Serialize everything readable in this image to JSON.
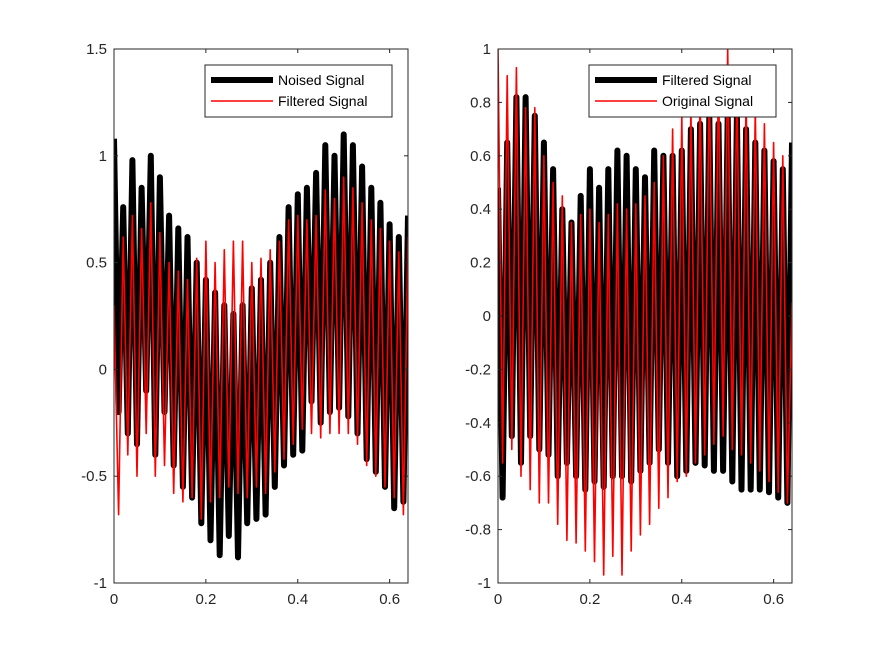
{
  "chart_data": [
    {
      "type": "line",
      "title": "",
      "xlabel": "",
      "ylabel": "",
      "xlim": [
        0,
        0.64
      ],
      "ylim": [
        -1,
        1.5
      ],
      "xticks": [
        0,
        0.2,
        0.4,
        0.6
      ],
      "xtick_labels": [
        "0",
        "0.2",
        "0.4",
        "0.6"
      ],
      "yticks": [
        -1,
        -0.5,
        0,
        0.5,
        1,
        1.5
      ],
      "ytick_labels": [
        "-1",
        "-0.5",
        "0",
        "0.5",
        "1",
        "1.5"
      ],
      "legend_position": "top-right",
      "grid": false,
      "series": [
        {
          "name": "Noised Signal",
          "color": "#000000",
          "style": "thick",
          "x": [
            0,
            0.01,
            0.02,
            0.03,
            0.04,
            0.05,
            0.06,
            0.07,
            0.08,
            0.09,
            0.1,
            0.11,
            0.12,
            0.13,
            0.14,
            0.15,
            0.16,
            0.17,
            0.18,
            0.19,
            0.2,
            0.21,
            0.22,
            0.23,
            0.24,
            0.25,
            0.26,
            0.27,
            0.28,
            0.29,
            0.3,
            0.31,
            0.32,
            0.33,
            0.34,
            0.35,
            0.36,
            0.37,
            0.38,
            0.39,
            0.4,
            0.41,
            0.42,
            0.43,
            0.44,
            0.45,
            0.46,
            0.47,
            0.48,
            0.49,
            0.5,
            0.51,
            0.52,
            0.53,
            0.54,
            0.55,
            0.56,
            0.57,
            0.58,
            0.59,
            0.6,
            0.61,
            0.62,
            0.63,
            0.64
          ],
          "y": [
            1.08,
            -0.2,
            0.76,
            -0.3,
            0.98,
            -0.35,
            0.85,
            -0.1,
            1.0,
            -0.4,
            0.9,
            -0.2,
            0.72,
            -0.45,
            0.66,
            -0.55,
            0.62,
            -0.6,
            0.5,
            -0.72,
            0.42,
            -0.8,
            0.36,
            -0.87,
            0.3,
            -0.78,
            0.26,
            -0.88,
            0.3,
            -0.72,
            0.38,
            -0.7,
            0.42,
            -0.68,
            0.5,
            -0.55,
            0.62,
            -0.45,
            0.76,
            -0.4,
            0.82,
            -0.38,
            0.85,
            -0.15,
            0.92,
            -0.25,
            1.05,
            -0.2,
            1.0,
            -0.18,
            1.1,
            -0.22,
            1.05,
            -0.3,
            0.95,
            -0.42,
            0.85,
            -0.48,
            0.78,
            -0.55,
            0.68,
            -0.65,
            0.62,
            -0.62,
            0.72
          ]
        },
        {
          "name": "Filtered Signal",
          "color": "#ff0000",
          "style": "thin",
          "x": [
            0,
            0.01,
            0.02,
            0.03,
            0.04,
            0.05,
            0.06,
            0.07,
            0.08,
            0.09,
            0.1,
            0.11,
            0.12,
            0.13,
            0.14,
            0.15,
            0.16,
            0.17,
            0.18,
            0.19,
            0.2,
            0.21,
            0.22,
            0.23,
            0.24,
            0.25,
            0.26,
            0.27,
            0.28,
            0.29,
            0.3,
            0.31,
            0.32,
            0.33,
            0.34,
            0.35,
            0.36,
            0.37,
            0.38,
            0.39,
            0.4,
            0.41,
            0.42,
            0.43,
            0.44,
            0.45,
            0.46,
            0.47,
            0.48,
            0.49,
            0.5,
            0.51,
            0.52,
            0.53,
            0.54,
            0.55,
            0.56,
            0.57,
            0.58,
            0.59,
            0.6,
            0.61,
            0.62,
            0.63,
            0.64
          ],
          "y": [
            0.3,
            -0.68,
            0.62,
            -0.4,
            0.72,
            -0.5,
            0.66,
            -0.3,
            0.78,
            -0.5,
            0.64,
            -0.45,
            0.5,
            -0.58,
            0.46,
            -0.62,
            0.42,
            -0.6,
            0.52,
            -0.7,
            0.6,
            -0.62,
            0.5,
            -0.6,
            0.56,
            -0.55,
            0.6,
            -0.58,
            0.6,
            -0.6,
            0.5,
            -0.55,
            0.52,
            -0.58,
            0.56,
            -0.48,
            0.6,
            -0.42,
            0.7,
            -0.35,
            0.72,
            -0.28,
            0.7,
            -0.3,
            0.72,
            -0.32,
            0.84,
            -0.3,
            0.8,
            -0.3,
            0.9,
            -0.3,
            0.85,
            -0.35,
            0.78,
            -0.45,
            0.7,
            -0.5,
            0.66,
            -0.55,
            0.6,
            -0.6,
            0.55,
            -0.68,
            0.62
          ]
        }
      ]
    },
    {
      "type": "line",
      "title": "",
      "xlabel": "",
      "ylabel": "",
      "xlim": [
        0,
        0.64
      ],
      "ylim": [
        -1,
        1
      ],
      "xticks": [
        0,
        0.2,
        0.4,
        0.6
      ],
      "xtick_labels": [
        "0",
        "0.2",
        "0.4",
        "0.6"
      ],
      "yticks": [
        -1,
        -0.8,
        -0.6,
        -0.4,
        -0.2,
        0,
        0.2,
        0.4,
        0.6,
        0.8,
        1
      ],
      "ytick_labels": [
        "-1",
        "-0.8",
        "-0.6",
        "-0.4",
        "-0.2",
        "0",
        "0.2",
        "0.4",
        "0.6",
        "0.8",
        "1"
      ],
      "legend_position": "top-right",
      "grid": false,
      "series": [
        {
          "name": "Filtered Signal",
          "color": "#000000",
          "style": "thick",
          "x": [
            0,
            0.01,
            0.02,
            0.03,
            0.04,
            0.05,
            0.06,
            0.07,
            0.08,
            0.09,
            0.1,
            0.11,
            0.12,
            0.13,
            0.14,
            0.15,
            0.16,
            0.17,
            0.18,
            0.19,
            0.2,
            0.21,
            0.22,
            0.23,
            0.24,
            0.25,
            0.26,
            0.27,
            0.28,
            0.29,
            0.3,
            0.31,
            0.32,
            0.33,
            0.34,
            0.35,
            0.36,
            0.37,
            0.38,
            0.39,
            0.4,
            0.41,
            0.42,
            0.43,
            0.44,
            0.45,
            0.46,
            0.47,
            0.48,
            0.49,
            0.5,
            0.51,
            0.52,
            0.53,
            0.54,
            0.55,
            0.56,
            0.57,
            0.58,
            0.59,
            0.6,
            0.61,
            0.62,
            0.63,
            0.64
          ],
          "y": [
            0.48,
            -0.68,
            0.65,
            -0.45,
            0.82,
            -0.55,
            0.82,
            -0.45,
            0.75,
            -0.5,
            0.65,
            -0.52,
            0.55,
            -0.6,
            0.4,
            -0.55,
            0.35,
            -0.6,
            0.45,
            -0.65,
            0.55,
            -0.62,
            0.48,
            -0.64,
            0.55,
            -0.6,
            0.62,
            -0.6,
            0.6,
            -0.62,
            0.55,
            -0.58,
            0.52,
            -0.55,
            0.62,
            -0.5,
            0.6,
            -0.55,
            0.6,
            -0.6,
            0.62,
            -0.58,
            0.7,
            -0.55,
            0.72,
            -0.56,
            0.75,
            -0.58,
            0.72,
            -0.58,
            0.75,
            -0.62,
            0.75,
            -0.65,
            0.7,
            -0.65,
            0.65,
            -0.65,
            0.62,
            -0.66,
            0.58,
            -0.68,
            0.55,
            -0.7,
            0.65
          ]
        },
        {
          "name": "Original Signal",
          "color": "#ff0000",
          "style": "thin",
          "x": [
            0,
            0.01,
            0.02,
            0.03,
            0.04,
            0.05,
            0.06,
            0.07,
            0.08,
            0.09,
            0.1,
            0.11,
            0.12,
            0.13,
            0.14,
            0.15,
            0.16,
            0.17,
            0.18,
            0.19,
            0.2,
            0.21,
            0.22,
            0.23,
            0.24,
            0.25,
            0.26,
            0.27,
            0.28,
            0.29,
            0.3,
            0.31,
            0.32,
            0.33,
            0.34,
            0.35,
            0.36,
            0.37,
            0.38,
            0.39,
            0.4,
            0.41,
            0.42,
            0.43,
            0.44,
            0.45,
            0.46,
            0.47,
            0.48,
            0.49,
            0.5,
            0.51,
            0.52,
            0.53,
            0.54,
            0.55,
            0.56,
            0.57,
            0.58,
            0.59,
            0.6,
            0.61,
            0.62,
            0.63,
            0.64
          ],
          "y": [
            1.0,
            -0.55,
            0.9,
            -0.5,
            0.93,
            -0.6,
            0.78,
            -0.65,
            0.78,
            -0.7,
            0.6,
            -0.7,
            0.5,
            -0.78,
            0.45,
            -0.84,
            0.35,
            -0.85,
            0.38,
            -0.88,
            0.4,
            -0.92,
            0.35,
            -0.97,
            0.38,
            -0.9,
            0.42,
            -0.97,
            0.4,
            -0.88,
            0.42,
            -0.82,
            0.45,
            -0.78,
            0.5,
            -0.72,
            0.6,
            -0.68,
            0.7,
            -0.62,
            0.75,
            -0.6,
            0.78,
            -0.55,
            0.85,
            -0.52,
            0.9,
            -0.48,
            0.92,
            -0.45,
            1.0,
            -0.5,
            0.88,
            -0.52,
            0.82,
            -0.55,
            0.78,
            -0.58,
            0.72,
            -0.62,
            0.65,
            -0.66,
            0.6,
            -0.7,
            0.05
          ]
        }
      ]
    }
  ]
}
